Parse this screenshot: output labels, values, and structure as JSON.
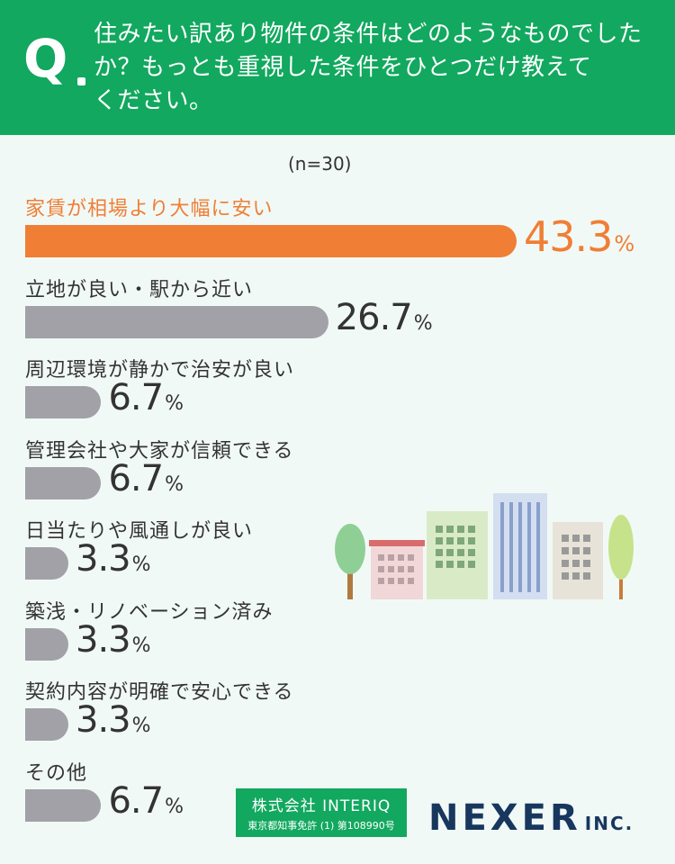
{
  "question": {
    "mark": "Q",
    "line1": "住みたい訳あり物件の条件はどのようなものでした",
    "line2": "か？もっとも重視した条件をひとつだけ教えて",
    "line3": "ください。"
  },
  "sample_size": "(n=30)",
  "chart_data": {
    "type": "bar",
    "orientation": "horizontal",
    "categories": [
      "家賃が相場より大幅に安い",
      "立地が良い・駅から近い",
      "周辺環境が静かで治安が良い",
      "管理会社や大家が信頼できる",
      "日当たりや風通しが良い",
      "築浅・リノベーション済み",
      "契約内容が明確で安心できる",
      "その他"
    ],
    "values": [
      43.3,
      26.7,
      6.7,
      6.7,
      3.3,
      3.3,
      3.3,
      6.7
    ],
    "value_labels": [
      "43.3",
      "26.7",
      "6.7",
      "6.7",
      "3.3",
      "3.3",
      "3.3",
      "6.7"
    ],
    "unit": "%",
    "highlight_index": 0,
    "colors": {
      "highlight": "#f07e35",
      "default": "#a1a1a7"
    },
    "xlim": [
      0,
      43.3
    ]
  },
  "logos": {
    "interiq_line1": "株式会社 INTERIQ",
    "interiq_line2": "東京都知事免許 (1) 第108990号",
    "nexer_main": "NEXER",
    "nexer_suffix": "INC."
  }
}
